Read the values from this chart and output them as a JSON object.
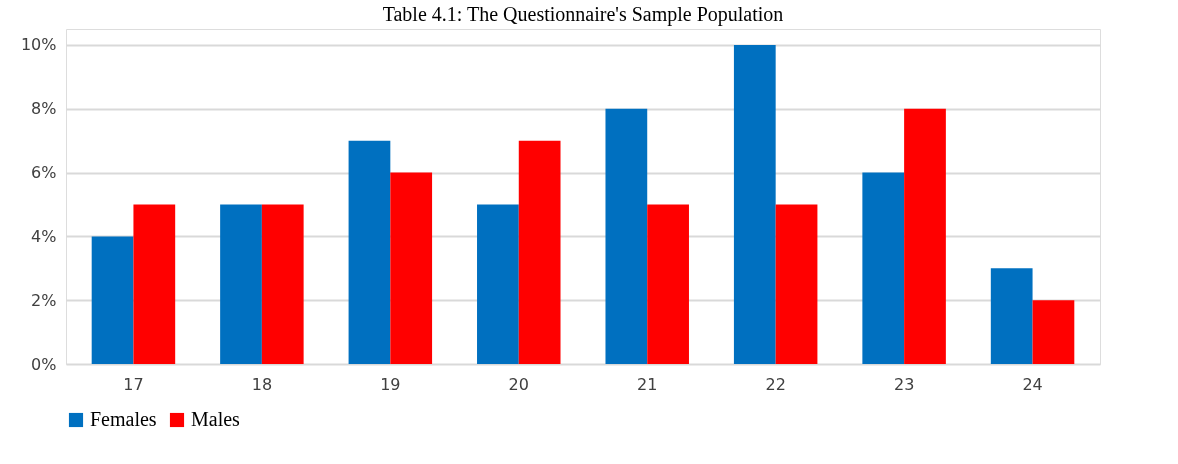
{
  "chart_data": {
    "type": "bar",
    "title": "Table 4.1: The Questionnaire's Sample Population",
    "categories": [
      "17",
      "18",
      "19",
      "20",
      "21",
      "22",
      "23",
      "24"
    ],
    "series": [
      {
        "name": "Females",
        "color": "#0070c0",
        "values": [
          4,
          5,
          7,
          5,
          8,
          10,
          6,
          3
        ]
      },
      {
        "name": "Males",
        "color": "#ff0000",
        "values": [
          5,
          5,
          6,
          7,
          5,
          5,
          8,
          2
        ]
      }
    ],
    "ylim": [
      0,
      10.5
    ],
    "yticks": [
      {
        "value": 0,
        "label": "0%"
      },
      {
        "value": 2,
        "label": "2%"
      },
      {
        "value": 4,
        "label": "4%"
      },
      {
        "value": 6,
        "label": "6%"
      },
      {
        "value": 8,
        "label": "8%"
      },
      {
        "value": 10,
        "label": "10%"
      }
    ],
    "grid": "y",
    "legend": "bottom"
  }
}
